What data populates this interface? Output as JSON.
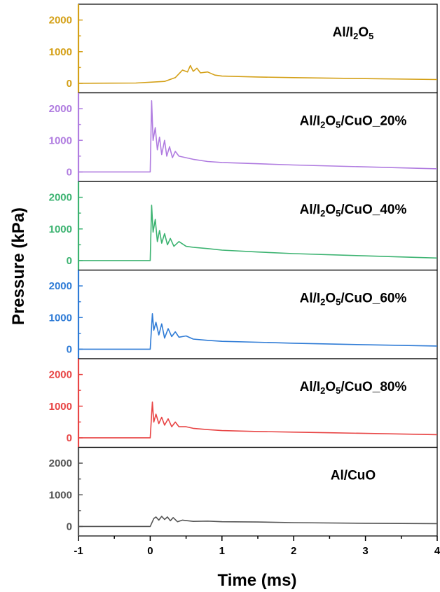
{
  "chart_data": {
    "type": "line",
    "xlabel": "Time (ms)",
    "ylabel": "Pressure (kPa)",
    "xlim": [
      -1,
      4
    ],
    "x_ticks": [
      -1,
      0,
      1,
      2,
      3,
      4
    ],
    "x_tick_labels": [
      "-1",
      "0",
      "1",
      "2",
      "3",
      "4"
    ],
    "y_ticks": [
      0,
      1000,
      2000
    ],
    "y_tick_labels": [
      "0",
      "1000",
      "2000"
    ],
    "ylim": [
      -300,
      2500
    ],
    "grid": false,
    "layout": "stacked panels sharing x axis",
    "panels": [
      {
        "name": "Al/I2O5",
        "label_parts": [
          {
            "t": "Al/I"
          },
          {
            "t": "2",
            "sub": true
          },
          {
            "t": "O"
          },
          {
            "t": "5",
            "sub": true
          }
        ],
        "color": "#D4A017",
        "x": [
          -1,
          -0.2,
          0.2,
          0.35,
          0.45,
          0.52,
          0.56,
          0.6,
          0.65,
          0.7,
          0.8,
          0.9,
          1.0,
          1.5,
          2.0,
          3.0,
          4.0
        ],
        "values": [
          0,
          10,
          60,
          180,
          420,
          360,
          560,
          380,
          480,
          330,
          360,
          260,
          230,
          200,
          180,
          150,
          120
        ]
      },
      {
        "name": "Al/I2O5/CuO_20%",
        "label_parts": [
          {
            "t": "Al/I"
          },
          {
            "t": "2",
            "sub": true
          },
          {
            "t": "O"
          },
          {
            "t": "5",
            "sub": true
          },
          {
            "t": "/CuO_20%"
          }
        ],
        "color": "#B07CE0",
        "x": [
          -1,
          0.0,
          0.02,
          0.04,
          0.07,
          0.1,
          0.13,
          0.16,
          0.2,
          0.23,
          0.27,
          0.31,
          0.35,
          0.4,
          0.5,
          0.6,
          0.8,
          1.0,
          1.5,
          2.0,
          3.0,
          4.0
        ],
        "values": [
          0,
          0,
          2250,
          1000,
          1400,
          700,
          1100,
          550,
          1000,
          500,
          800,
          450,
          650,
          500,
          450,
          400,
          330,
          300,
          260,
          220,
          160,
          100
        ]
      },
      {
        "name": "Al/I2O5/CuO_40%",
        "label_parts": [
          {
            "t": "Al/I"
          },
          {
            "t": "2",
            "sub": true
          },
          {
            "t": "O"
          },
          {
            "t": "5",
            "sub": true
          },
          {
            "t": "/CuO_40%"
          }
        ],
        "color": "#3CB371",
        "x": [
          -1,
          0.0,
          0.02,
          0.04,
          0.07,
          0.1,
          0.13,
          0.16,
          0.2,
          0.24,
          0.28,
          0.33,
          0.4,
          0.5,
          0.6,
          0.8,
          1.0,
          1.5,
          2.0,
          3.0,
          4.0
        ],
        "values": [
          0,
          0,
          1750,
          900,
          1300,
          600,
          950,
          550,
          850,
          500,
          700,
          450,
          600,
          450,
          420,
          380,
          330,
          270,
          220,
          150,
          80
        ]
      },
      {
        "name": "Al/I2O5/CuO_60%",
        "label_parts": [
          {
            "t": "Al/I"
          },
          {
            "t": "2",
            "sub": true
          },
          {
            "t": "O"
          },
          {
            "t": "5",
            "sub": true
          },
          {
            "t": "/CuO_60%"
          }
        ],
        "color": "#2E7BD6",
        "x": [
          -1,
          0.0,
          0.03,
          0.05,
          0.08,
          0.12,
          0.16,
          0.2,
          0.25,
          0.3,
          0.35,
          0.4,
          0.5,
          0.6,
          0.8,
          1.0,
          1.5,
          2.0,
          3.0,
          4.0
        ],
        "values": [
          0,
          0,
          1120,
          600,
          850,
          450,
          800,
          350,
          650,
          400,
          550,
          380,
          420,
          320,
          280,
          250,
          220,
          190,
          140,
          100
        ]
      },
      {
        "name": "Al/I2O5/CuO_80%",
        "label_parts": [
          {
            "t": "Al/I"
          },
          {
            "t": "2",
            "sub": true
          },
          {
            "t": "O"
          },
          {
            "t": "5",
            "sub": true
          },
          {
            "t": "/CuO_80%"
          }
        ],
        "color": "#E84545",
        "x": [
          -1,
          0.0,
          0.03,
          0.05,
          0.08,
          0.12,
          0.16,
          0.2,
          0.25,
          0.3,
          0.35,
          0.4,
          0.5,
          0.6,
          0.8,
          1.0,
          1.5,
          2.0,
          2.5,
          3.0,
          4.0
        ],
        "values": [
          0,
          0,
          1130,
          500,
          750,
          450,
          650,
          400,
          600,
          350,
          500,
          350,
          350,
          300,
          260,
          230,
          200,
          180,
          160,
          140,
          100
        ]
      },
      {
        "name": "Al/CuO",
        "label_parts": [
          {
            "t": "Al/CuO"
          }
        ],
        "color": "#555555",
        "x": [
          -1,
          0.0,
          0.05,
          0.08,
          0.12,
          0.16,
          0.2,
          0.24,
          0.28,
          0.32,
          0.38,
          0.45,
          0.6,
          0.8,
          1.0,
          1.5,
          2.0,
          3.0,
          4.0
        ],
        "values": [
          0,
          0,
          250,
          300,
          200,
          320,
          220,
          300,
          180,
          280,
          150,
          200,
          160,
          170,
          150,
          140,
          120,
          100,
          90
        ]
      }
    ]
  }
}
